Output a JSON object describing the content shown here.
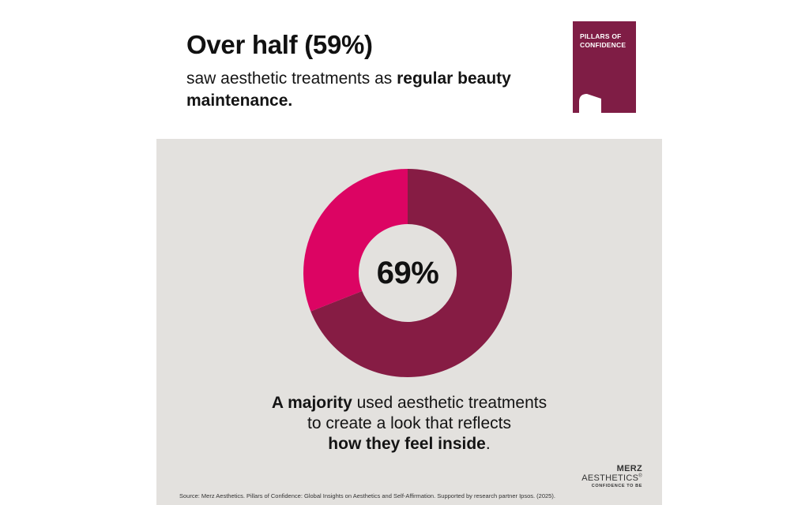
{
  "header": {
    "headline": "Over half (59%)",
    "subhead_plain": "saw aesthetic treatments as ",
    "subhead_bold": "regular beauty maintenance."
  },
  "badge": {
    "line1": "PILLARS OF",
    "line2": "CONFIDENCE",
    "color": "#7f1d45"
  },
  "chart_data": {
    "type": "pie",
    "variant": "donut",
    "center_label": "69%",
    "slices": [
      {
        "value": 69,
        "color": "#861c44"
      },
      {
        "value": 31,
        "color": "#dc0463"
      }
    ]
  },
  "caption": {
    "bold1": "A majority",
    "plain1": " used aesthetic treatments",
    "line2": "to create a look that reflects",
    "bold2": "how they feel inside",
    "end": "."
  },
  "logo": {
    "brand_bold": "MERZ",
    "brand_rest": " AESTHETICS",
    "reg": "®",
    "tagline": "CONFIDENCE TO BE"
  },
  "source": "Source: Merz Aesthetics. Pillars of Confidence: Global Insights on Aesthetics and Self-Affirmation. Supported by research partner Ipsos. (2025).",
  "colors": {
    "panel_bg": "#e3e1de",
    "page_bg": "#ffffff"
  }
}
